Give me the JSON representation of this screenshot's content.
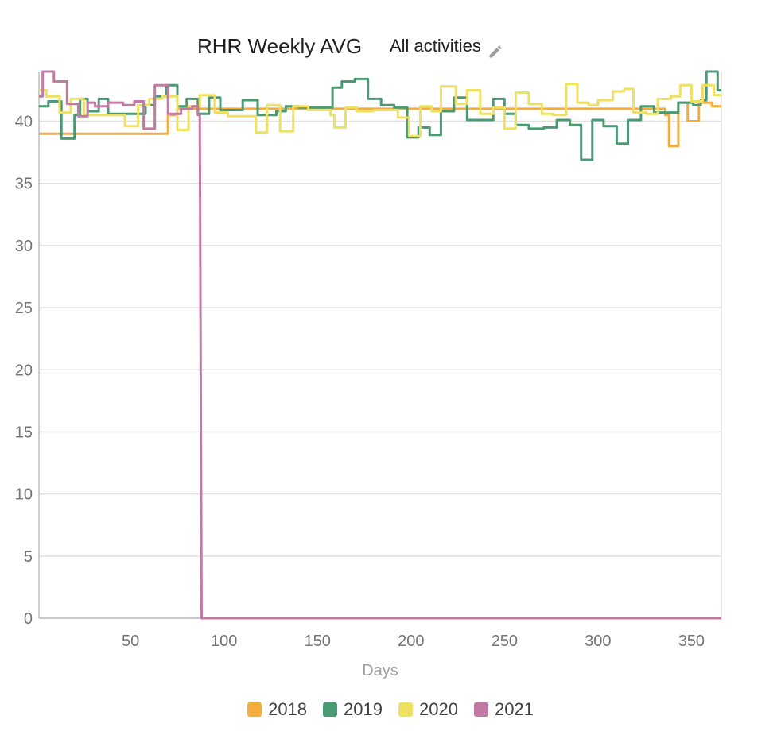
{
  "header": {
    "title": "RHR Weekly AVG",
    "filter_label": "All activities",
    "filter_icon": "pencil-icon"
  },
  "colors": {
    "2018": "#f4ac3d",
    "2019": "#4a9b74",
    "2020": "#eee060",
    "2021": "#c27aa5",
    "grid": "#e0e0e0",
    "axis": "#bdbdbd"
  },
  "chart_data": {
    "type": "line",
    "xlabel": "Days",
    "ylabel": "",
    "xlim": [
      1,
      366
    ],
    "ylim": [
      0,
      44
    ],
    "x_ticks": [
      50,
      100,
      150,
      200,
      250,
      300,
      350
    ],
    "y_ticks": [
      0,
      5,
      10,
      15,
      20,
      25,
      30,
      35,
      40
    ],
    "grid": true,
    "legend_position": "bottom",
    "series": [
      {
        "name": "2018",
        "color": "#f4ac3d",
        "points": [
          [
            1,
            39
          ],
          [
            70,
            39
          ],
          [
            70,
            40.5
          ],
          [
            75,
            40.5
          ],
          [
            75,
            41
          ],
          [
            336,
            41
          ],
          [
            336,
            40.5
          ],
          [
            338,
            40.5
          ],
          [
            338,
            38
          ],
          [
            343,
            38
          ],
          [
            343,
            41.5
          ],
          [
            348,
            41.5
          ],
          [
            348,
            40
          ],
          [
            354,
            40
          ],
          [
            354,
            41.5
          ],
          [
            361,
            41.5
          ],
          [
            361,
            41.2
          ],
          [
            366,
            41.2
          ]
        ]
      },
      {
        "name": "2019",
        "color": "#4a9b74",
        "points": [
          [
            1,
            41.2
          ],
          [
            6,
            41.2
          ],
          [
            6,
            41.6
          ],
          [
            13,
            41.6
          ],
          [
            13,
            38.6
          ],
          [
            20,
            38.6
          ],
          [
            20,
            40.5
          ],
          [
            23,
            40.5
          ],
          [
            23,
            41.8
          ],
          [
            27,
            41.8
          ],
          [
            27,
            40.8
          ],
          [
            33,
            40.8
          ],
          [
            33,
            41.8
          ],
          [
            38,
            41.8
          ],
          [
            38,
            40.6
          ],
          [
            58,
            40.6
          ],
          [
            58,
            41.3
          ],
          [
            63,
            41.3
          ],
          [
            63,
            42
          ],
          [
            69,
            42
          ],
          [
            69,
            42.9
          ],
          [
            75,
            42.9
          ],
          [
            75,
            41.2
          ],
          [
            80,
            41.2
          ],
          [
            80,
            41.8
          ],
          [
            86,
            41.8
          ],
          [
            86,
            40.6
          ],
          [
            92,
            40.6
          ],
          [
            92,
            41.9
          ],
          [
            98,
            41.9
          ],
          [
            98,
            40.9
          ],
          [
            110,
            40.9
          ],
          [
            110,
            41.7
          ],
          [
            118,
            41.7
          ],
          [
            118,
            40.5
          ],
          [
            128,
            40.5
          ],
          [
            128,
            40.8
          ],
          [
            133,
            40.8
          ],
          [
            133,
            41.2
          ],
          [
            140,
            41.2
          ],
          [
            140,
            41.1
          ],
          [
            158,
            41.1
          ],
          [
            158,
            42.7
          ],
          [
            163,
            42.7
          ],
          [
            163,
            43.2
          ],
          [
            170,
            43.2
          ],
          [
            170,
            43.4
          ],
          [
            177,
            43.4
          ],
          [
            177,
            41.8
          ],
          [
            184,
            41.8
          ],
          [
            184,
            41.3
          ],
          [
            191,
            41.3
          ],
          [
            191,
            41.1
          ],
          [
            198,
            41.1
          ],
          [
            198,
            38.7
          ],
          [
            204,
            38.7
          ],
          [
            204,
            39.5
          ],
          [
            210,
            39.5
          ],
          [
            210,
            38.9
          ],
          [
            216,
            38.9
          ],
          [
            216,
            40.8
          ],
          [
            223,
            40.8
          ],
          [
            223,
            41.9
          ],
          [
            230,
            41.9
          ],
          [
            230,
            40.1
          ],
          [
            244,
            40.1
          ],
          [
            244,
            41.8
          ],
          [
            250,
            41.8
          ],
          [
            250,
            40.6
          ],
          [
            256,
            40.6
          ],
          [
            256,
            39.7
          ],
          [
            263,
            39.7
          ],
          [
            263,
            39.4
          ],
          [
            271,
            39.4
          ],
          [
            271,
            39.5
          ],
          [
            278,
            39.5
          ],
          [
            278,
            40.1
          ],
          [
            285,
            40.1
          ],
          [
            285,
            39.7
          ],
          [
            291,
            39.7
          ],
          [
            291,
            36.9
          ],
          [
            297,
            36.9
          ],
          [
            297,
            40.1
          ],
          [
            303,
            40.1
          ],
          [
            303,
            39.6
          ],
          [
            310,
            39.6
          ],
          [
            310,
            38.2
          ],
          [
            316,
            38.2
          ],
          [
            316,
            40.1
          ],
          [
            323,
            40.1
          ],
          [
            323,
            41.2
          ],
          [
            330,
            41.2
          ],
          [
            330,
            40.7
          ],
          [
            343,
            40.7
          ],
          [
            343,
            41.5
          ],
          [
            351,
            41.5
          ],
          [
            351,
            41.3
          ],
          [
            355,
            41.3
          ],
          [
            355,
            41.7
          ],
          [
            358,
            41.7
          ],
          [
            358,
            44
          ],
          [
            364,
            44
          ],
          [
            364,
            42.5
          ],
          [
            366,
            42.5
          ]
        ]
      },
      {
        "name": "2020",
        "color": "#eee060",
        "points": [
          [
            1,
            42.5
          ],
          [
            5,
            42.5
          ],
          [
            5,
            42
          ],
          [
            12,
            42
          ],
          [
            12,
            40.7
          ],
          [
            18,
            40.7
          ],
          [
            18,
            41.8
          ],
          [
            25,
            41.8
          ],
          [
            25,
            40.5
          ],
          [
            47,
            40.5
          ],
          [
            47,
            39.6
          ],
          [
            54,
            39.6
          ],
          [
            54,
            41.3
          ],
          [
            60,
            41.3
          ],
          [
            60,
            41.8
          ],
          [
            67,
            41.8
          ],
          [
            67,
            42
          ],
          [
            75,
            42
          ],
          [
            75,
            39.3
          ],
          [
            81,
            39.3
          ],
          [
            81,
            41.2
          ],
          [
            87,
            41.2
          ],
          [
            87,
            42.1
          ],
          [
            95,
            42.1
          ],
          [
            95,
            40.7
          ],
          [
            102,
            40.7
          ],
          [
            102,
            40.4
          ],
          [
            117,
            40.4
          ],
          [
            117,
            39.1
          ],
          [
            123,
            39.1
          ],
          [
            123,
            41.3
          ],
          [
            130,
            41.3
          ],
          [
            130,
            39.2
          ],
          [
            137,
            39.2
          ],
          [
            137,
            41.2
          ],
          [
            145,
            41.2
          ],
          [
            145,
            40.9
          ],
          [
            157,
            40.9
          ],
          [
            157,
            40.5
          ],
          [
            159,
            40.5
          ],
          [
            159,
            39.5
          ],
          [
            165,
            39.5
          ],
          [
            165,
            41.1
          ],
          [
            171,
            41.1
          ],
          [
            171,
            40.8
          ],
          [
            180,
            40.8
          ],
          [
            180,
            40.9
          ],
          [
            193,
            40.9
          ],
          [
            193,
            40.3
          ],
          [
            199,
            40.3
          ],
          [
            199,
            38.8
          ],
          [
            205,
            38.8
          ],
          [
            205,
            41.2
          ],
          [
            211,
            41.2
          ],
          [
            211,
            40.8
          ],
          [
            216,
            40.8
          ],
          [
            216,
            42.8
          ],
          [
            224,
            42.8
          ],
          [
            224,
            41.4
          ],
          [
            230,
            41.4
          ],
          [
            230,
            42.5
          ],
          [
            237,
            42.5
          ],
          [
            237,
            40.6
          ],
          [
            244,
            40.6
          ],
          [
            244,
            41.1
          ],
          [
            250,
            41.1
          ],
          [
            250,
            39.4
          ],
          [
            256,
            39.4
          ],
          [
            256,
            42.3
          ],
          [
            263,
            42.3
          ],
          [
            263,
            41.4
          ],
          [
            270,
            41.4
          ],
          [
            270,
            40.6
          ],
          [
            276,
            40.6
          ],
          [
            276,
            40.5
          ],
          [
            283,
            40.5
          ],
          [
            283,
            43
          ],
          [
            289,
            43
          ],
          [
            289,
            41.5
          ],
          [
            295,
            41.5
          ],
          [
            295,
            41.3
          ],
          [
            300,
            41.3
          ],
          [
            300,
            41.7
          ],
          [
            308,
            41.7
          ],
          [
            308,
            42.4
          ],
          [
            314,
            42.4
          ],
          [
            314,
            42.6
          ],
          [
            319,
            42.6
          ],
          [
            319,
            40.7
          ],
          [
            326,
            40.7
          ],
          [
            326,
            40.6
          ],
          [
            332,
            40.6
          ],
          [
            332,
            41.8
          ],
          [
            339,
            41.8
          ],
          [
            339,
            42
          ],
          [
            344,
            42
          ],
          [
            344,
            42.9
          ],
          [
            350,
            42.9
          ],
          [
            350,
            41.6
          ],
          [
            356,
            41.6
          ],
          [
            356,
            42.9
          ],
          [
            362,
            42.9
          ],
          [
            362,
            42.1
          ],
          [
            366,
            42.1
          ]
        ]
      },
      {
        "name": "2021",
        "color": "#c27aa5",
        "points": [
          [
            1,
            42
          ],
          [
            3,
            42
          ],
          [
            3,
            44
          ],
          [
            9,
            44
          ],
          [
            9,
            43.2
          ],
          [
            16,
            43.2
          ],
          [
            16,
            41.4
          ],
          [
            22,
            41.4
          ],
          [
            22,
            40.4
          ],
          [
            27,
            40.4
          ],
          [
            27,
            41.5
          ],
          [
            31,
            41.5
          ],
          [
            31,
            41.2
          ],
          [
            38,
            41.2
          ],
          [
            38,
            41.5
          ],
          [
            46,
            41.5
          ],
          [
            46,
            41.3
          ],
          [
            52,
            41.3
          ],
          [
            52,
            41.6
          ],
          [
            57,
            41.6
          ],
          [
            57,
            39.4
          ],
          [
            63,
            39.4
          ],
          [
            63,
            42.9
          ],
          [
            70,
            42.9
          ],
          [
            70,
            40.6
          ],
          [
            77,
            40.6
          ],
          [
            77,
            41
          ],
          [
            83,
            41
          ],
          [
            83,
            41.2
          ],
          [
            86,
            41.2
          ],
          [
            86,
            40.5
          ],
          [
            87,
            40.5
          ],
          [
            88,
            0
          ],
          [
            366,
            0
          ]
        ]
      }
    ]
  }
}
